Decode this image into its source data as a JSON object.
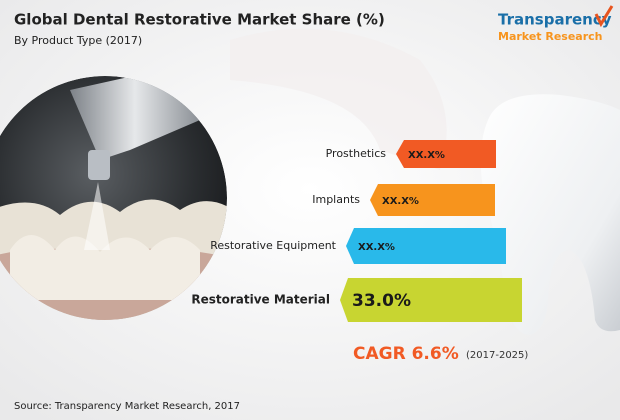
{
  "header": {
    "title": "Global Dental Restorative Market Share (%)",
    "subtitle": "By Product Type (2017)"
  },
  "logo": {
    "line1": "Transparency",
    "line2": "Market Research"
  },
  "segments": [
    {
      "label": "Prosthetics",
      "value": "XX.X%",
      "color": "#f15a24"
    },
    {
      "label": "Implants",
      "value": "XX.X%",
      "color": "#f7941d"
    },
    {
      "label": "Restorative Equipment",
      "value": "XX.X%",
      "color": "#29b9ea"
    },
    {
      "label": "Restorative Material",
      "value": "33.0%",
      "color": "#c8d531"
    }
  ],
  "cagr": {
    "label": "CAGR 6.6%",
    "period": "(2017-2025)"
  },
  "source": "Source: Transparency Market Research, 2017"
}
